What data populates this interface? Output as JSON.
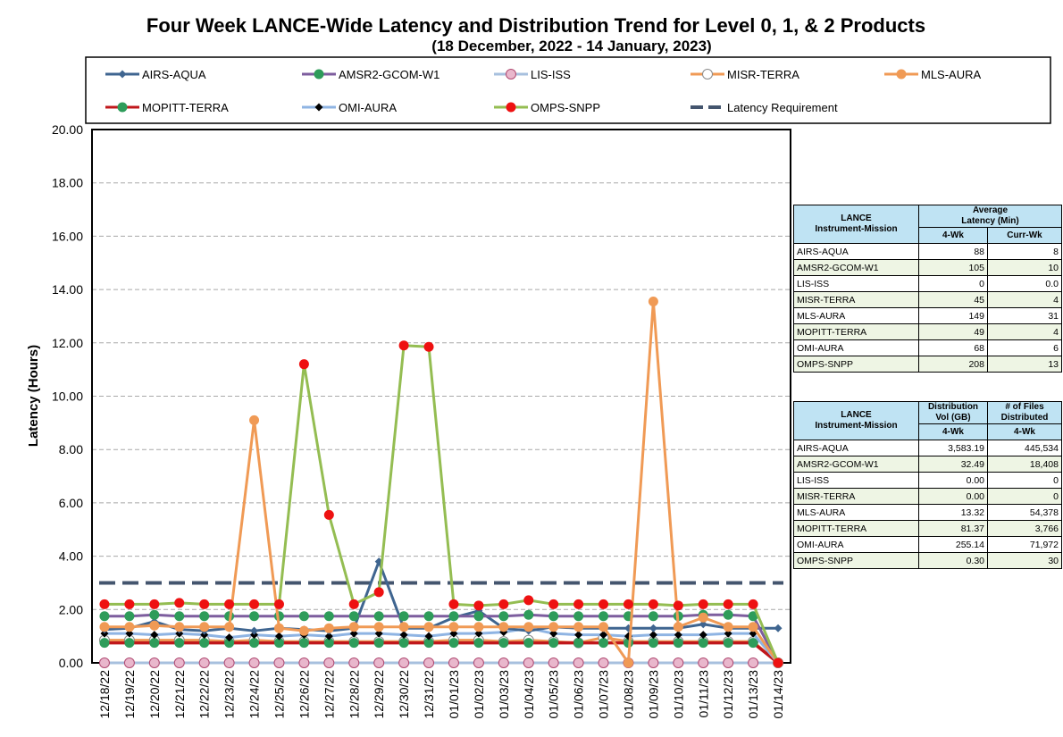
{
  "chart_data": {
    "type": "line",
    "title": "Four Week LANCE-Wide Latency and Distribution Trend for Level 0, 1, & 2 Products",
    "subtitle": "(18  December,  2022  -  14  January, 2023)",
    "ylabel": "Latency (Hours)",
    "ylim": [
      0,
      20
    ],
    "yticks": [
      "0.00",
      "2.00",
      "4.00",
      "6.00",
      "8.00",
      "10.00",
      "12.00",
      "14.00",
      "16.00",
      "18.00",
      "20.00"
    ],
    "legend_position": "top",
    "grid": true,
    "categories": [
      "12/18/22",
      "12/19/22",
      "12/20/22",
      "12/21/22",
      "12/22/22",
      "12/23/22",
      "12/24/22",
      "12/25/22",
      "12/26/22",
      "12/27/22",
      "12/28/22",
      "12/29/22",
      "12/30/22",
      "12/31/22",
      "01/01/23",
      "01/02/23",
      "01/03/23",
      "01/04/23",
      "01/05/23",
      "01/06/23",
      "01/07/23",
      "01/08/23",
      "01/09/23",
      "01/10/23",
      "01/11/23",
      "01/12/23",
      "01/13/23",
      "01/14/23"
    ],
    "series": [
      {
        "name": "AIRS-AQUA",
        "color": "#3f6590",
        "marker": "diamond",
        "values": [
          1.25,
          1.3,
          1.55,
          1.25,
          1.2,
          1.3,
          1.2,
          1.3,
          1.25,
          1.2,
          1.3,
          3.8,
          1.3,
          1.3,
          1.7,
          1.95,
          1.3,
          1.2,
          1.35,
          1.3,
          1.3,
          1.3,
          1.3,
          1.3,
          1.45,
          1.3,
          1.3,
          1.3
        ]
      },
      {
        "name": "AMSR2-GCOM-W1",
        "color": "#7d5d9e",
        "marker": "circle",
        "fill": "#2e9c5a",
        "values": [
          1.75,
          1.75,
          1.8,
          1.75,
          1.75,
          1.75,
          1.75,
          1.75,
          1.75,
          1.75,
          1.75,
          1.75,
          1.75,
          1.75,
          1.75,
          1.75,
          1.75,
          1.8,
          1.75,
          1.75,
          1.75,
          1.75,
          1.75,
          1.75,
          1.8,
          1.8,
          1.75,
          0.0
        ]
      },
      {
        "name": "LIS-ISS",
        "color": "#a7c0de",
        "marker": "circle",
        "fill": "#e9b7cc",
        "values": [
          0,
          0,
          0,
          0,
          0,
          0,
          0,
          0,
          0,
          0,
          0,
          0,
          0,
          0,
          0,
          0,
          0,
          0,
          0,
          0,
          0,
          0,
          0,
          0,
          0,
          0,
          0,
          0
        ]
      },
      {
        "name": "MISR-TERRA",
        "color": "#f09a55",
        "marker": "circle",
        "fill": "#ffffff",
        "values": [
          0.85,
          0.85,
          0.85,
          0.85,
          0.85,
          0.8,
          0.85,
          0.8,
          0.8,
          0.8,
          0.8,
          0.8,
          0.8,
          0.8,
          0.85,
          0.85,
          0.8,
          0.85,
          0.8,
          0.75,
          0.95,
          0.8,
          0.8,
          0.8,
          0.8,
          0.8,
          0.8,
          0.0
        ]
      },
      {
        "name": "MLS-AURA",
        "color": "#f09a55",
        "marker": "circle",
        "fill": "#f09a55",
        "values": [
          1.35,
          1.35,
          1.4,
          1.35,
          1.35,
          1.35,
          9.1,
          1.3,
          1.2,
          1.3,
          1.35,
          1.35,
          1.35,
          1.35,
          1.35,
          1.35,
          1.35,
          1.35,
          1.35,
          1.35,
          1.35,
          0.0,
          13.55,
          1.35,
          1.7,
          1.35,
          1.35,
          0.0
        ]
      },
      {
        "name": "MOPITT-TERRA",
        "color": "#c0171b",
        "marker": "circle",
        "fill": "#2e9c5a",
        "values": [
          0.75,
          0.75,
          0.75,
          0.75,
          0.75,
          0.75,
          0.75,
          0.75,
          0.75,
          0.75,
          0.75,
          0.75,
          0.75,
          0.75,
          0.75,
          0.75,
          0.75,
          0.75,
          0.75,
          0.75,
          0.75,
          0.75,
          0.75,
          0.75,
          0.75,
          0.75,
          0.75,
          0.0
        ]
      },
      {
        "name": "OMI-AURA",
        "color": "#8fb4e3",
        "marker": "diamond",
        "fill": "#000000",
        "values": [
          1.1,
          1.1,
          1.05,
          1.1,
          1.05,
          0.95,
          1.05,
          1.0,
          1.05,
          1.0,
          1.1,
          1.1,
          1.05,
          1.0,
          1.1,
          1.1,
          1.15,
          1.3,
          1.1,
          1.05,
          1.05,
          1.0,
          1.05,
          1.05,
          1.05,
          1.1,
          1.1,
          0.0
        ]
      },
      {
        "name": "OMPS-SNPP",
        "color": "#94bd52",
        "marker": "circle",
        "fill": "#ee1111",
        "values": [
          2.2,
          2.2,
          2.2,
          2.25,
          2.2,
          2.2,
          2.2,
          2.2,
          11.2,
          5.55,
          2.2,
          2.65,
          11.9,
          11.85,
          2.2,
          2.15,
          2.2,
          2.35,
          2.2,
          2.2,
          2.2,
          2.2,
          2.2,
          2.15,
          2.2,
          2.2,
          2.2,
          0.0
        ]
      },
      {
        "name": "Latency Requirement",
        "color": "#44556e",
        "marker": "dash",
        "values": [
          3,
          3,
          3,
          3,
          3,
          3,
          3,
          3,
          3,
          3,
          3,
          3,
          3,
          3,
          3,
          3,
          3,
          3,
          3,
          3,
          3,
          3,
          3,
          3,
          3,
          3,
          3,
          3
        ]
      }
    ]
  },
  "latency_table": {
    "header_col1": [
      "LANCE",
      "Instrument-Mission"
    ],
    "header_col2": [
      "Average",
      "Latency (Min)"
    ],
    "sub_col2": "4-Wk",
    "sub_col3": "Curr-Wk",
    "rows": [
      {
        "name": "AIRS-AQUA",
        "v1": "88",
        "v2": "8"
      },
      {
        "name": "AMSR2-GCOM-W1",
        "v1": "105",
        "v2": "10"
      },
      {
        "name": "LIS-ISS",
        "v1": "0",
        "v2": "0.0"
      },
      {
        "name": "MISR-TERRA",
        "v1": "45",
        "v2": "4"
      },
      {
        "name": "MLS-AURA",
        "v1": "149",
        "v2": "31"
      },
      {
        "name": "MOPITT-TERRA",
        "v1": "49",
        "v2": "4"
      },
      {
        "name": "OMI-AURA",
        "v1": "68",
        "v2": "6"
      },
      {
        "name": "OMPS-SNPP",
        "v1": "208",
        "v2": "13"
      }
    ]
  },
  "distribution_table": {
    "header_col1": [
      "LANCE",
      "Instrument-Mission"
    ],
    "header_col2": [
      "Distribution",
      "Vol (GB)"
    ],
    "header_col3": [
      "# of Files",
      "Distributed"
    ],
    "sub_col2": "4-Wk",
    "sub_col3": "4-Wk",
    "rows": [
      {
        "name": "AIRS-AQUA",
        "v1": "3,583.19",
        "v2": "445,534"
      },
      {
        "name": "AMSR2-GCOM-W1",
        "v1": "32.49",
        "v2": "18,408"
      },
      {
        "name": "LIS-ISS",
        "v1": "0.00",
        "v2": "0"
      },
      {
        "name": "MISR-TERRA",
        "v1": "0.00",
        "v2": "0"
      },
      {
        "name": "MLS-AURA",
        "v1": "13.32",
        "v2": "54,378"
      },
      {
        "name": "MOPITT-TERRA",
        "v1": "81.37",
        "v2": "3,766"
      },
      {
        "name": "OMI-AURA",
        "v1": "255.14",
        "v2": "71,972"
      },
      {
        "name": "OMPS-SNPP",
        "v1": "0.30",
        "v2": "30"
      }
    ]
  }
}
